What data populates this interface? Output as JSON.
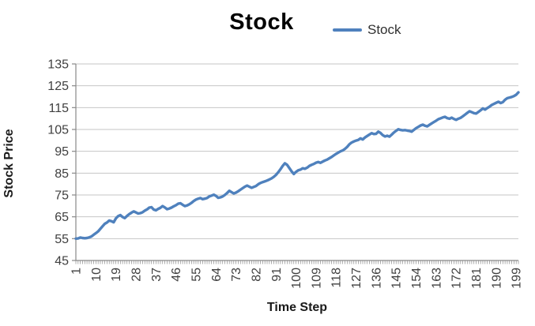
{
  "chart_data": {
    "type": "line",
    "title": "Stock",
    "xlabel": "Time Step",
    "ylabel": "Stock Price",
    "ylim": [
      45,
      135
    ],
    "y_ticks": [
      45,
      55,
      65,
      75,
      85,
      95,
      105,
      115,
      125,
      135
    ],
    "x_tick_labels": [
      "1",
      "10",
      "19",
      "28",
      "37",
      "46",
      "55",
      "64",
      "73",
      "82",
      "91",
      "100",
      "109",
      "118",
      "127",
      "136",
      "145",
      "154",
      "163",
      "172",
      "181",
      "190",
      "199"
    ],
    "x_tick_interval": 9,
    "grid": true,
    "legend_position": "top",
    "colors": {
      "line": "#4F81BD",
      "gridline": "#C6C6C6",
      "axis": "#898989",
      "tick_text": "#3F3F3F"
    },
    "series": [
      {
        "name": "Stock",
        "color": "#4F81BD",
        "values": [
          55.0,
          55.1,
          55.5,
          55.3,
          55.2,
          55.3,
          55.6,
          56.0,
          56.8,
          57.5,
          58.3,
          59.5,
          60.7,
          61.8,
          62.4,
          63.3,
          63.0,
          62.5,
          64.3,
          65.3,
          65.8,
          64.9,
          64.4,
          65.4,
          66.2,
          66.9,
          67.5,
          67.0,
          66.5,
          66.7,
          67.1,
          67.8,
          68.4,
          69.2,
          69.4,
          68.3,
          68.0,
          68.6,
          69.1,
          69.9,
          69.3,
          68.5,
          68.8,
          69.2,
          69.8,
          70.3,
          71.0,
          71.2,
          70.5,
          69.9,
          70.2,
          70.7,
          71.4,
          72.2,
          72.9,
          73.3,
          73.6,
          73.1,
          73.3,
          73.6,
          74.3,
          74.7,
          75.1,
          74.6,
          73.7,
          73.9,
          74.3,
          75.0,
          75.9,
          76.9,
          76.3,
          75.7,
          76.1,
          76.7,
          77.4,
          78.1,
          78.8,
          79.3,
          78.8,
          78.3,
          78.7,
          79.1,
          79.9,
          80.5,
          80.9,
          81.2,
          81.6,
          82.1,
          82.6,
          83.3,
          84.2,
          85.4,
          86.8,
          88.3,
          89.5,
          88.8,
          87.3,
          85.8,
          84.6,
          85.6,
          86.3,
          86.6,
          87.2,
          87.0,
          87.5,
          88.3,
          88.8,
          89.2,
          89.8,
          90.1,
          89.7,
          90.3,
          90.8,
          91.2,
          91.8,
          92.4,
          93.1,
          93.8,
          94.4,
          95.0,
          95.4,
          96.1,
          97.0,
          98.2,
          99.0,
          99.5,
          99.9,
          100.2,
          100.9,
          100.4,
          101.3,
          102.0,
          102.7,
          103.3,
          102.9,
          103.0,
          104.0,
          103.4,
          102.4,
          101.8,
          102.1,
          101.7,
          102.6,
          103.6,
          104.4,
          105.1,
          104.8,
          104.6,
          104.7,
          104.5,
          104.3,
          104.0,
          104.8,
          105.6,
          106.2,
          106.8,
          107.2,
          106.7,
          106.4,
          107.1,
          107.8,
          108.4,
          109.0,
          109.7,
          110.1,
          110.5,
          110.8,
          110.2,
          109.9,
          110.4,
          109.8,
          109.4,
          109.9,
          110.3,
          111.0,
          111.8,
          112.6,
          113.3,
          112.9,
          112.5,
          112.3,
          113.0,
          113.8,
          114.6,
          114.1,
          114.8,
          115.4,
          116.2,
          116.7,
          117.2,
          117.7,
          117.1,
          117.5,
          118.6,
          119.3,
          119.6,
          119.9,
          120.3,
          120.9,
          122.0
        ]
      }
    ]
  }
}
